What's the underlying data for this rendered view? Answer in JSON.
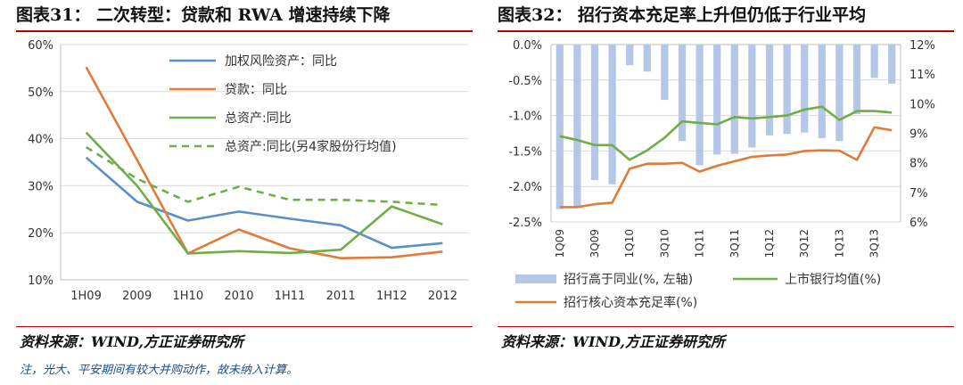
{
  "left": {
    "title": "图表31：  二次转型：贷款和 RWA 增速持续下降",
    "source": "资料来源：WIND,方正证券研究所",
    "note": "注，光大、平安期间有较大并购动作，故未纳入计算。"
  },
  "right": {
    "title": "图表32：  招行资本充足率上升但仍低于行业平均",
    "source": "资料来源：WIND,方正证券研究所"
  },
  "chart_data": [
    {
      "type": "line",
      "categories": [
        "1H09",
        "2009",
        "1H10",
        "2010",
        "1H11",
        "2011",
        "1H12",
        "2012"
      ],
      "ylim": [
        0.1,
        0.6
      ],
      "yticks": [
        "10%",
        "20%",
        "30%",
        "40%",
        "50%",
        "60%"
      ],
      "series": [
        {
          "name": "加权风险资产：同比",
          "color": "#5b8fc7",
          "dash": false,
          "values": [
            0.36,
            0.266,
            0.226,
            0.245,
            0.23,
            0.216,
            0.168,
            0.178
          ]
        },
        {
          "name": "贷款：同比",
          "color": "#e07b3a",
          "dash": false,
          "values": [
            0.552,
            0.355,
            0.156,
            0.207,
            0.167,
            0.146,
            0.148,
            0.16
          ]
        },
        {
          "name": "总资产:同比",
          "color": "#70ad47",
          "dash": false,
          "values": [
            0.413,
            0.3,
            0.156,
            0.161,
            0.157,
            0.164,
            0.256,
            0.218
          ]
        },
        {
          "name": "总资产:同比(另4家股份行均值)",
          "color": "#70ad47",
          "dash": true,
          "values": [
            0.382,
            0.315,
            0.266,
            0.298,
            0.27,
            0.27,
            0.266,
            0.259
          ]
        }
      ]
    },
    {
      "type": "bar",
      "categories": [
        "1Q09",
        "2Q09",
        "3Q09",
        "4Q09",
        "1Q10",
        "2Q10",
        "3Q10",
        "4Q10",
        "1Q11",
        "2Q11",
        "3Q11",
        "4Q11",
        "1Q12",
        "2Q12",
        "3Q12",
        "4Q12",
        "1Q13",
        "2Q13",
        "3Q13",
        "4Q13"
      ],
      "xticklabels": [
        "1Q09",
        "",
        "3Q09",
        "",
        "1Q10",
        "",
        "3Q10",
        "",
        "1Q11",
        "",
        "3Q11",
        "",
        "1Q12",
        "",
        "3Q12",
        "",
        "1Q13",
        "",
        "3Q13",
        ""
      ],
      "ylim_left": [
        -2.5,
        0.0
      ],
      "yticks_left": [
        "-2.5%",
        "-2.0%",
        "-1.5%",
        "-1.0%",
        "-0.5%",
        "0.0%"
      ],
      "ylim_right": [
        6,
        12
      ],
      "yticks_right": [
        "6%",
        "7%",
        "8%",
        "9%",
        "10%",
        "11%",
        "12%"
      ],
      "series": [
        {
          "name": "招行高于同业(%, 左轴)",
          "type": "bar",
          "axis": "left",
          "color": "#b4c7e7",
          "values": [
            -2.32,
            -2.28,
            -1.91,
            -1.97,
            -0.29,
            -0.38,
            -0.78,
            -1.36,
            -1.7,
            -1.55,
            -1.54,
            -1.45,
            -1.28,
            -1.26,
            -1.24,
            -1.32,
            -1.36,
            -0.98,
            -0.47,
            -0.55
          ]
        },
        {
          "name": "上市银行均值(%)",
          "type": "line",
          "axis": "right",
          "color": "#70ad47",
          "values": [
            8.9,
            8.77,
            8.6,
            8.6,
            8.1,
            8.42,
            8.85,
            9.4,
            9.35,
            9.3,
            9.55,
            9.5,
            9.55,
            9.6,
            9.8,
            9.9,
            9.45,
            9.75,
            9.75,
            9.7
          ]
        },
        {
          "name": "招行核心资本充足率(%)",
          "type": "line",
          "axis": "right",
          "color": "#e07b3a",
          "values": [
            6.5,
            6.5,
            6.6,
            6.65,
            7.8,
            7.97,
            7.97,
            8.0,
            7.7,
            7.9,
            8.05,
            8.2,
            8.25,
            8.28,
            8.4,
            8.42,
            8.41,
            8.1,
            9.2,
            9.1
          ]
        }
      ]
    }
  ]
}
